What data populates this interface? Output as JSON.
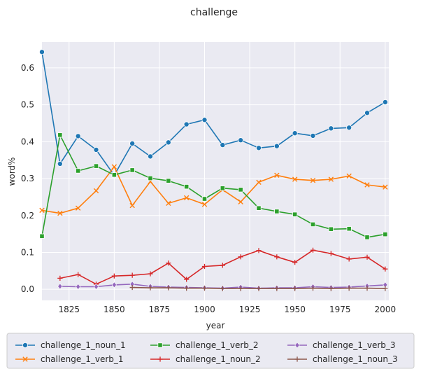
{
  "chart_data": {
    "type": "line",
    "title": "challenge",
    "xlabel": "year",
    "ylabel": "word%",
    "xlim": [
      1810,
      2002
    ],
    "ylim": [
      -0.03,
      0.67
    ],
    "xticks": [
      1825,
      1850,
      1875,
      1900,
      1925,
      1950,
      1975,
      2000
    ],
    "yticks": [
      0.0,
      0.1,
      0.2,
      0.3,
      0.4,
      0.5,
      0.6
    ],
    "ytick_labels": [
      "0.0",
      "0.1",
      "0.2",
      "0.3",
      "0.4",
      "0.5",
      "0.6"
    ],
    "grid": true,
    "legend_position": "bottom",
    "series": [
      {
        "name": "challenge_1_noun_1",
        "color": "#1f77b4",
        "marker": "circle",
        "x": [
          1810,
          1820,
          1830,
          1840,
          1850,
          1860,
          1870,
          1880,
          1890,
          1900,
          1910,
          1920,
          1930,
          1940,
          1950,
          1960,
          1970,
          1980,
          1990,
          2000
        ],
        "y": [
          0.643,
          0.34,
          0.415,
          0.378,
          0.309,
          0.395,
          0.36,
          0.398,
          0.447,
          0.459,
          0.391,
          0.404,
          0.383,
          0.388,
          0.423,
          0.416,
          0.436,
          0.438,
          0.478,
          0.507
        ]
      },
      {
        "name": "challenge_1_verb_1",
        "color": "#ff7f0e",
        "marker": "x",
        "x": [
          1810,
          1820,
          1830,
          1840,
          1850,
          1860,
          1870,
          1880,
          1890,
          1900,
          1910,
          1920,
          1930,
          1940,
          1950,
          1960,
          1970,
          1980,
          1990,
          2000
        ],
        "y": [
          0.214,
          0.206,
          0.22,
          0.267,
          0.332,
          0.227,
          0.292,
          0.233,
          0.248,
          0.23,
          0.27,
          0.237,
          0.29,
          0.309,
          0.298,
          0.295,
          0.298,
          0.307,
          0.283,
          0.277
        ]
      },
      {
        "name": "challenge_1_verb_2",
        "color": "#2ca02c",
        "marker": "square",
        "x": [
          1810,
          1820,
          1830,
          1840,
          1850,
          1860,
          1870,
          1880,
          1890,
          1900,
          1910,
          1920,
          1930,
          1940,
          1950,
          1960,
          1970,
          1980,
          1990,
          2000
        ],
        "y": [
          0.144,
          0.418,
          0.321,
          0.334,
          0.31,
          0.323,
          0.301,
          0.294,
          0.278,
          0.245,
          0.274,
          0.27,
          0.22,
          0.211,
          0.203,
          0.176,
          0.163,
          0.164,
          0.141,
          0.149
        ]
      },
      {
        "name": "challenge_1_noun_2",
        "color": "#d62728",
        "marker": "plus",
        "x": [
          1820,
          1830,
          1840,
          1850,
          1860,
          1870,
          1880,
          1890,
          1900,
          1910,
          1920,
          1930,
          1940,
          1950,
          1960,
          1970,
          1980,
          1990,
          2000
        ],
        "y": [
          0.03,
          0.04,
          0.014,
          0.036,
          0.038,
          0.042,
          0.071,
          0.027,
          0.062,
          0.065,
          0.088,
          0.105,
          0.088,
          0.073,
          0.106,
          0.097,
          0.082,
          0.087,
          0.055
        ]
      },
      {
        "name": "challenge_1_verb_3",
        "color": "#9467bd",
        "marker": "diamond",
        "x": [
          1820,
          1830,
          1840,
          1850,
          1860,
          1870,
          1880,
          1890,
          1900,
          1910,
          1920,
          1930,
          1940,
          1950,
          1960,
          1970,
          1980,
          1990,
          2000
        ],
        "y": [
          0.008,
          0.007,
          0.007,
          0.012,
          0.014,
          0.008,
          0.006,
          0.005,
          0.004,
          0.003,
          0.006,
          0.003,
          0.004,
          0.004,
          0.007,
          0.005,
          0.006,
          0.009,
          0.012
        ]
      },
      {
        "name": "challenge_1_noun_3",
        "color": "#8c564b",
        "marker": "plus",
        "x": [
          1860,
          1870,
          1880,
          1890,
          1900,
          1910,
          1920,
          1930,
          1940,
          1950,
          1960,
          1970,
          1980,
          1990,
          2000
        ],
        "y": [
          0.005,
          0.004,
          0.004,
          0.003,
          0.003,
          0.002,
          0.002,
          0.002,
          0.002,
          0.002,
          0.003,
          0.002,
          0.003,
          0.003,
          0.002
        ]
      }
    ]
  }
}
